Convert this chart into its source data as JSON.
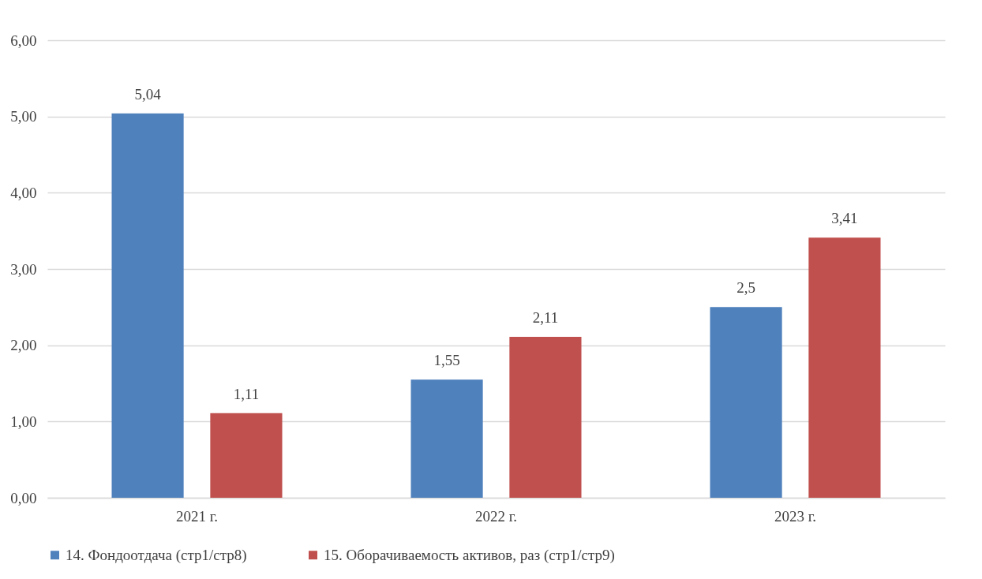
{
  "chart_data": {
    "type": "bar",
    "categories": [
      "2021 г.",
      "2022 г.",
      "2023 г."
    ],
    "series": [
      {
        "name": "14.    Фондоотдача (стр1/стр8)",
        "color": "#4f81bd",
        "values": [
          5.04,
          1.55,
          2.5
        ],
        "value_labels": [
          "5,04",
          "1,55",
          "2,5"
        ]
      },
      {
        "name": "15.    Оборачиваемость активов, раз (стр1/стр9)",
        "color": "#c0504d",
        "values": [
          1.11,
          2.11,
          3.41
        ],
        "value_labels": [
          "1,11",
          "2,11",
          "3,41"
        ]
      }
    ],
    "ylim": [
      0,
      6
    ],
    "yticks": [
      {
        "value": 0,
        "label": "0,00"
      },
      {
        "value": 1,
        "label": "1,00"
      },
      {
        "value": 2,
        "label": "2,00"
      },
      {
        "value": 3,
        "label": "3,00"
      },
      {
        "value": 4,
        "label": "4,00"
      },
      {
        "value": 5,
        "label": "5,00"
      },
      {
        "value": 6,
        "label": "6,00"
      }
    ],
    "grid": "y",
    "legend": "bottom"
  }
}
